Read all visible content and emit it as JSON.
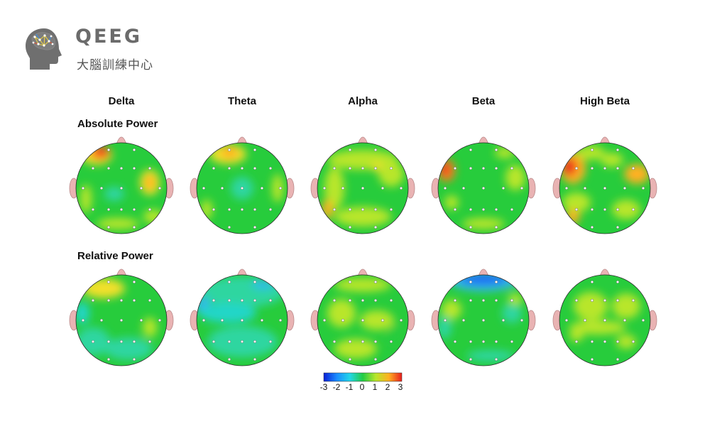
{
  "header": {
    "brand_title": "QEEG",
    "brand_subtitle": "大腦訓練中心",
    "logo_icon": "brain-head-icon"
  },
  "bands": [
    "Delta",
    "Theta",
    "Alpha",
    "Beta",
    "High Beta"
  ],
  "rows": [
    "Absolute Power",
    "Relative Power"
  ],
  "colorbar": {
    "ticks": [
      "-3",
      "-2",
      "-1",
      "0",
      "1",
      "2",
      "3"
    ],
    "colors": [
      "#0a1fd6",
      "#1a8cff",
      "#22d6e8",
      "#22cc44",
      "#b8e62a",
      "#ffb020",
      "#e81e1e"
    ]
  },
  "palette": {
    "map_base": "#27cc3c",
    "ear": "#e9b3b3",
    "electrode": "#ffffff"
  }
}
